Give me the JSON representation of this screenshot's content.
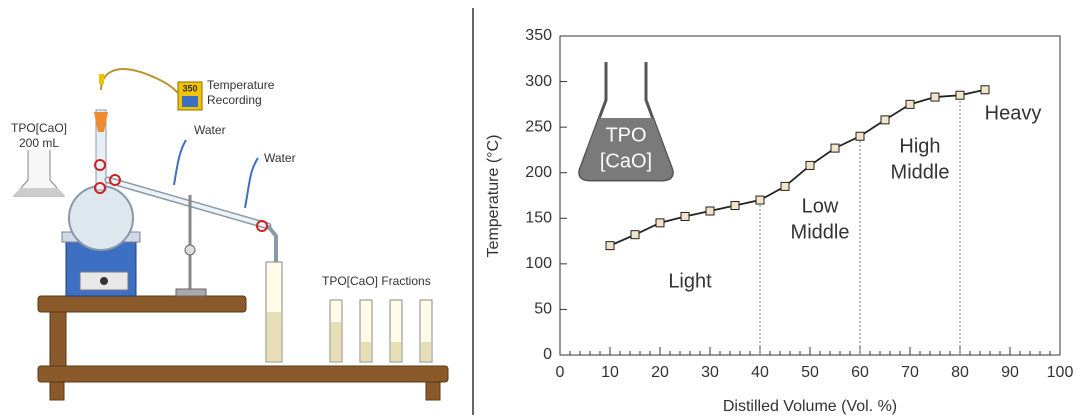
{
  "chart_data": {
    "type": "line",
    "x": [
      10,
      15,
      20,
      25,
      30,
      35,
      40,
      45,
      50,
      55,
      60,
      65,
      70,
      75,
      80,
      85
    ],
    "series": [
      {
        "values": [
          120,
          132,
          145,
          152,
          158,
          164,
          170,
          185,
          208,
          227,
          240,
          258,
          275,
          283,
          285,
          291
        ],
        "color": "#222222",
        "marker_color": "#f3e3c8"
      }
    ],
    "xlim": [
      0,
      100
    ],
    "xticks": [
      0,
      10,
      20,
      30,
      40,
      50,
      60,
      70,
      80,
      90,
      100
    ],
    "xminor_step": 2,
    "ylim": [
      0,
      350
    ],
    "yticks": [
      0,
      50,
      100,
      150,
      200,
      250,
      300,
      350
    ],
    "xlabel": "Distilled Volume (Vol. %)",
    "ylabel": "Temperature (°C)",
    "boundaries": [
      40,
      60,
      80
    ],
    "regions": [
      [
        "Light"
      ],
      [
        "Low",
        "Middle"
      ],
      [
        "High",
        "Middle"
      ],
      [
        "Heavy"
      ]
    ],
    "flask_label": [
      "TPO",
      "[CaO]"
    ]
  },
  "diagram": {
    "sample": [
      "TPO[CaO]",
      "200 mL"
    ],
    "display": "350",
    "temperature": [
      "Temperature",
      "Recording"
    ],
    "water_1": "Water",
    "water_2": "Water",
    "fractions": "TPO[CaO] Fractions"
  }
}
